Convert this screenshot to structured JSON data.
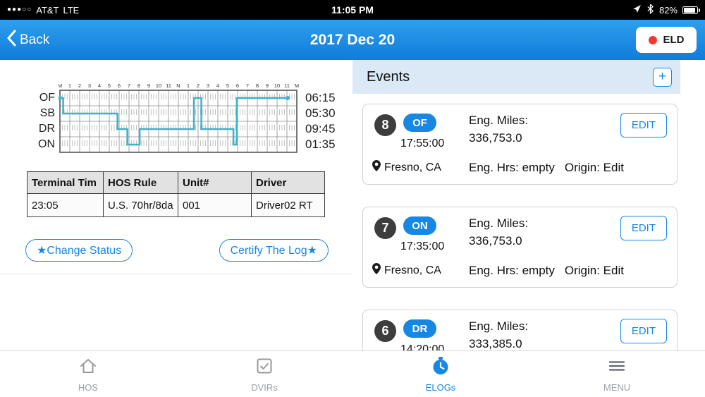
{
  "status_bar": {
    "signal_dots": "●●●○○",
    "carrier": "AT&T",
    "network": "LTE",
    "time": "11:05 PM",
    "battery_percent": "82%",
    "battery_level": 0.82
  },
  "nav_bar": {
    "back_label": "Back",
    "title": "2017 Dec 20",
    "eld_button_label": "ELD"
  },
  "colors": {
    "accent_blue": "#1787e4",
    "graph_line_teal": "#3fb3c9",
    "eld_dot_red": "#f3392f",
    "events_header_blue": "#dbe9f7"
  },
  "chart_data": {
    "type": "line",
    "title": "HOS duty status graph grid for 2017 Dec 20",
    "x_unit": "hours (midnight to midnight)",
    "xlim": [
      0,
      24
    ],
    "grid": true,
    "hour_labels": [
      "M",
      "1",
      "2",
      "3",
      "4",
      "5",
      "6",
      "7",
      "8",
      "9",
      "10",
      "11",
      "N",
      "1",
      "2",
      "3",
      "4",
      "5",
      "6",
      "7",
      "8",
      "9",
      "10",
      "11",
      "M"
    ],
    "row_labels": [
      "OF",
      "SB",
      "DR",
      "ON"
    ],
    "row_totals": [
      "06:15",
      "05:30",
      "09:45",
      "01:35"
    ],
    "segments": [
      {
        "status": "OF",
        "start": 0,
        "end": 0.33
      },
      {
        "status": "SB",
        "start": 0.33,
        "end": 5.83
      },
      {
        "status": "DR",
        "start": 5.83,
        "end": 6.83
      },
      {
        "status": "ON",
        "start": 6.83,
        "end": 8.08
      },
      {
        "status": "DR",
        "start": 8.08,
        "end": 13.58
      },
      {
        "status": "OF",
        "start": 13.58,
        "end": 14.33
      },
      {
        "status": "DR",
        "start": 14.33,
        "end": 17.58
      },
      {
        "status": "ON",
        "start": 17.58,
        "end": 17.92
      },
      {
        "status": "OF",
        "start": 17.92,
        "end": 23.08
      }
    ]
  },
  "summary_table": {
    "headers": [
      "Terminal Tim",
      "HOS Rule",
      "Unit#",
      "Driver"
    ],
    "row": [
      "23:05",
      "U.S. 70hr/8da",
      "001",
      "Driver02 RT"
    ]
  },
  "actions": {
    "change_status_label": "★Change Status",
    "certify_label": "Certify The Log★"
  },
  "events_panel": {
    "title": "Events",
    "add_button_label": "+",
    "events": [
      {
        "number": "8",
        "status": "OF",
        "time": "17:55:00",
        "location": "Fresno, CA",
        "eng_miles_label": "Eng. Miles:",
        "eng_miles_value": "336,753.0",
        "eng_hrs_text": "Eng. Hrs: empty",
        "origin_text": "Origin: Edit",
        "edit_label": "EDIT"
      },
      {
        "number": "7",
        "status": "ON",
        "time": "17:35:00",
        "location": "Fresno, CA",
        "eng_miles_label": "Eng. Miles:",
        "eng_miles_value": "336,753.0",
        "eng_hrs_text": "Eng. Hrs: empty",
        "origin_text": "Origin: Edit",
        "edit_label": "EDIT"
      },
      {
        "number": "6",
        "status": "DR",
        "time": "14:20:00",
        "location": "",
        "eng_miles_label": "Eng. Miles:",
        "eng_miles_value": "333,385.0",
        "eng_hrs_text": "",
        "origin_text": "",
        "edit_label": "EDIT"
      }
    ]
  },
  "tab_bar": {
    "items": [
      {
        "label": "HOS",
        "icon": "house-icon",
        "active": false
      },
      {
        "label": "DVIRs",
        "icon": "checkbox-icon",
        "active": false
      },
      {
        "label": "ELOGs",
        "icon": "clock-icon",
        "active": true
      },
      {
        "label": "MENU",
        "icon": "hamburger-icon",
        "active": false
      }
    ]
  }
}
